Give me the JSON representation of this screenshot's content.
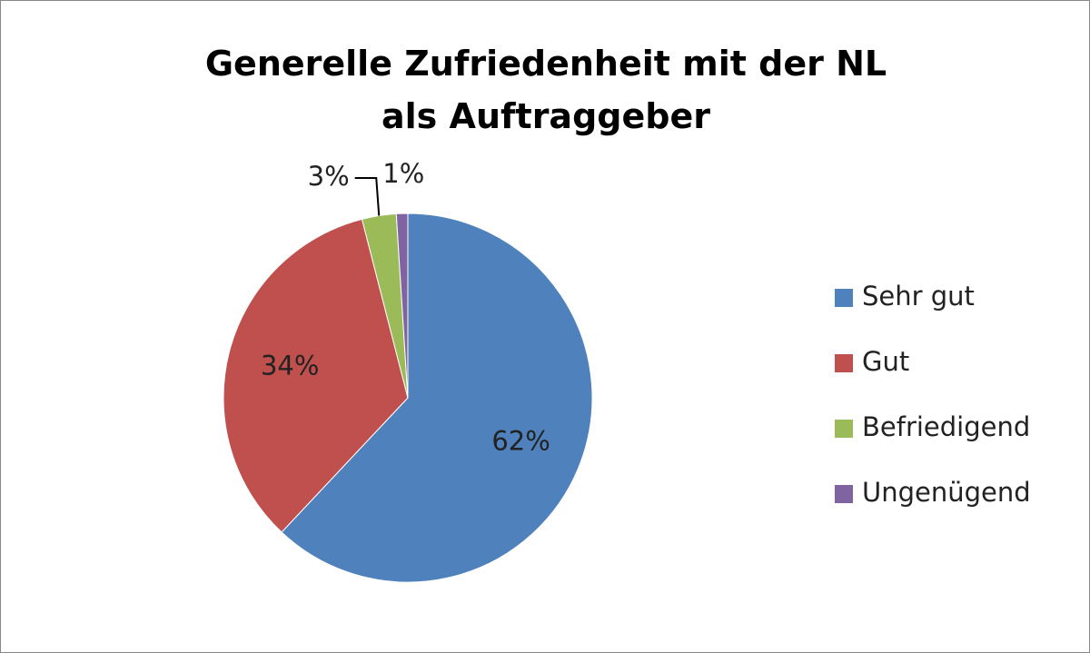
{
  "chart_data": {
    "type": "pie",
    "title": "Generelle Zufriedenheit mit der NL als Auftraggeber",
    "categories": [
      "Sehr gut",
      "Gut",
      "Befriedigend",
      "Ungenügend"
    ],
    "values": [
      62,
      34,
      3,
      1
    ],
    "value_labels": [
      "62%",
      "34%",
      "3%",
      "1%"
    ],
    "colors": [
      "#4f81bd",
      "#c0504d",
      "#9bbb59",
      "#8064a2"
    ],
    "legend": "right"
  }
}
